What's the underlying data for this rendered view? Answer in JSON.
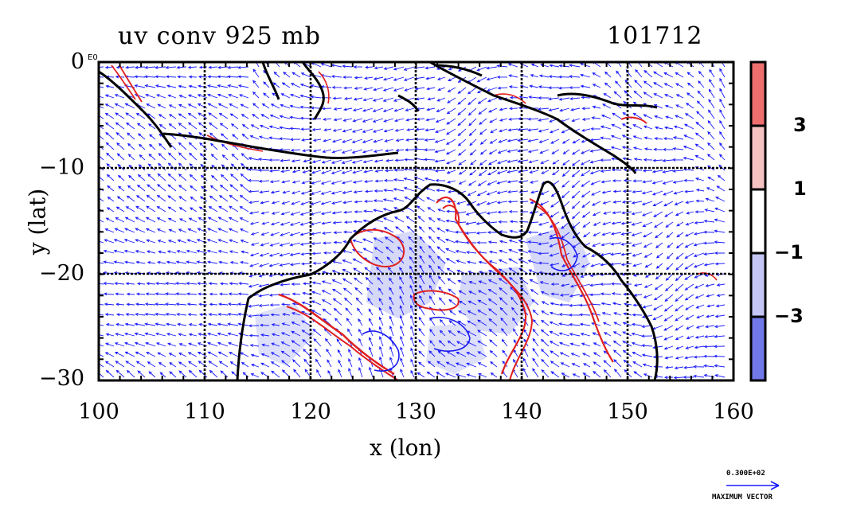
{
  "title": {
    "left": "uv conv 925 mb",
    "right": "101712"
  },
  "axes": {
    "xlabel": "x (lon)",
    "ylabel": "y (lat)",
    "xticks": [
      "100",
      "110",
      "120",
      "130",
      "140",
      "150",
      "160"
    ],
    "yticks": [
      "0",
      "−10",
      "−20",
      "−30"
    ],
    "corner_mark": "E0",
    "xlim": [
      100,
      160
    ],
    "ylim": [
      -30,
      0
    ]
  },
  "colorbar": {
    "labels": [
      "3",
      "1",
      "−1",
      "−3"
    ],
    "bins": [
      {
        "color": "#ef6f6f"
      },
      {
        "color": "#f6c3c3"
      },
      {
        "color": "#ffffff"
      },
      {
        "color": "#c3c6f4"
      },
      {
        "color": "#7178e8"
      }
    ]
  },
  "reference_vector": {
    "value": "0.300E+02",
    "label": "MAXIMUM VECTOR"
  },
  "colors": {
    "vectors": "#1a1aff",
    "positive_contour": "#e02020",
    "negative_contour": "#1a1aee",
    "coastline": "#000000"
  }
}
